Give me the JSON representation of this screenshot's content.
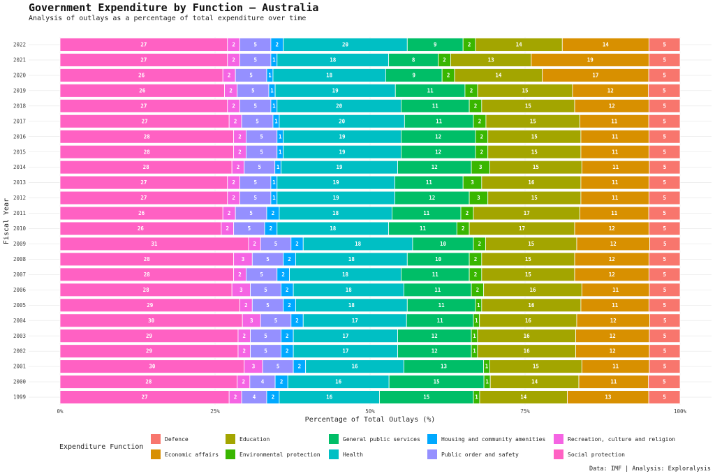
{
  "title": "Government Expenditure by Function — Australia",
  "subtitle": "Analysis of outlays as a percentage of total expenditure over time",
  "caption": "Data: IMF | Analysis: Exploralysis",
  "chart_data": {
    "type": "bar",
    "orientation": "horizontal",
    "stacked": true,
    "normalized": true,
    "xlabel": "Percentage of Total Outlays (%)",
    "ylabel": "Fiscal Year",
    "xlim": [
      0,
      100
    ],
    "x_ticks": [
      "0%",
      "25%",
      "50%",
      "75%",
      "100%"
    ],
    "grid": true,
    "legend_title": "Expenditure Function",
    "legend_position": "bottom",
    "categories": [
      "2022",
      "2021",
      "2020",
      "2019",
      "2018",
      "2017",
      "2016",
      "2015",
      "2014",
      "2013",
      "2012",
      "2011",
      "2010",
      "2009",
      "2008",
      "2007",
      "2006",
      "2005",
      "2004",
      "2003",
      "2002",
      "2001",
      "2000",
      "1999"
    ],
    "series": [
      {
        "name": "Social protection",
        "color": "#FF61C3",
        "values": [
          27,
          27,
          26,
          26,
          27,
          27,
          28,
          28,
          28,
          27,
          27,
          26,
          26,
          31,
          28,
          28,
          28,
          29,
          30,
          29,
          29,
          30,
          28,
          27
        ]
      },
      {
        "name": "Recreation, culture and religion",
        "color": "#F564E3",
        "values": [
          2,
          2,
          2,
          2,
          2,
          2,
          2,
          2,
          2,
          2,
          2,
          2,
          2,
          2,
          3,
          2,
          3,
          2,
          3,
          2,
          2,
          3,
          2,
          2
        ]
      },
      {
        "name": "Public order and safety",
        "color": "#9590FF",
        "values": [
          5,
          5,
          5,
          5,
          5,
          5,
          5,
          5,
          5,
          5,
          5,
          5,
          5,
          5,
          5,
          5,
          5,
          5,
          5,
          5,
          5,
          5,
          4,
          4
        ]
      },
      {
        "name": "Housing and community amenities",
        "color": "#00A9FF",
        "values": [
          2,
          1,
          1,
          1,
          1,
          1,
          1,
          1,
          1,
          1,
          1,
          2,
          2,
          2,
          2,
          2,
          2,
          2,
          2,
          2,
          2,
          2,
          2,
          2
        ]
      },
      {
        "name": "Health",
        "color": "#00BFC4",
        "values": [
          20,
          18,
          18,
          19,
          20,
          20,
          19,
          19,
          19,
          19,
          19,
          18,
          18,
          18,
          18,
          18,
          18,
          18,
          17,
          17,
          17,
          16,
          16,
          16
        ]
      },
      {
        "name": "General public services",
        "color": "#00BE67",
        "values": [
          9,
          8,
          9,
          11,
          11,
          11,
          12,
          12,
          12,
          11,
          12,
          11,
          11,
          10,
          10,
          11,
          11,
          11,
          11,
          12,
          12,
          13,
          15,
          15
        ]
      },
      {
        "name": "Environmental protection",
        "color": "#39B600",
        "values": [
          2,
          2,
          2,
          2,
          2,
          2,
          2,
          2,
          3,
          3,
          3,
          2,
          2,
          2,
          2,
          2,
          2,
          1,
          1,
          1,
          1,
          1,
          1,
          1
        ]
      },
      {
        "name": "Education",
        "color": "#A3A500",
        "values": [
          14,
          13,
          14,
          15,
          15,
          15,
          15,
          15,
          15,
          16,
          15,
          17,
          17,
          15,
          15,
          15,
          16,
          16,
          16,
          16,
          16,
          15,
          14,
          14
        ]
      },
      {
        "name": "Economic affairs",
        "color": "#D89000",
        "values": [
          14,
          19,
          17,
          12,
          12,
          11,
          11,
          11,
          11,
          11,
          11,
          11,
          12,
          12,
          12,
          12,
          11,
          11,
          12,
          12,
          12,
          11,
          11,
          13
        ]
      },
      {
        "name": "Defence",
        "color": "#F8766D",
        "values": [
          5,
          5,
          5,
          5,
          5,
          5,
          5,
          5,
          5,
          5,
          5,
          5,
          5,
          5,
          5,
          5,
          5,
          5,
          5,
          5,
          5,
          5,
          5,
          5
        ]
      }
    ],
    "legend_order": [
      [
        "Defence",
        "Education",
        "General public services",
        "Housing and community amenities",
        "Recreation, culture and religion"
      ],
      [
        "Economic affairs",
        "Environmental protection",
        "Health",
        "Public order and safety",
        "Social protection"
      ]
    ]
  }
}
